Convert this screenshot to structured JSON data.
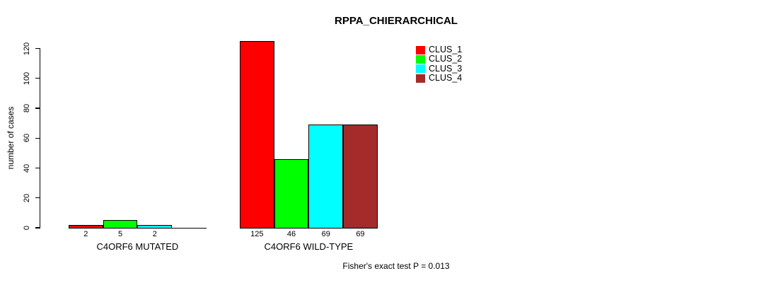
{
  "title": "RPPA_CHIERARCHICAL",
  "footer": "Fisher's exact test P = 0.013",
  "chart_data": {
    "type": "bar",
    "grouped": true,
    "title": "RPPA_CHIERARCHICAL",
    "xlabel": "",
    "ylabel": "number of cases",
    "categories": [
      "C4ORF6 MUTATED",
      "C4ORF6 WILD-TYPE"
    ],
    "series": [
      {
        "name": "CLUS_1",
        "color": "#ff0000",
        "values": [
          2,
          125
        ]
      },
      {
        "name": "CLUS_2",
        "color": "#00ff00",
        "values": [
          5,
          46
        ]
      },
      {
        "name": "CLUS_3",
        "color": "#00ffff",
        "values": [
          2,
          69
        ]
      },
      {
        "name": "CLUS_4",
        "color": "#a52a2a",
        "values": [
          0,
          69
        ]
      }
    ],
    "bar_value_labels": [
      [
        "2",
        "5",
        "2",
        ""
      ],
      [
        "125",
        "46",
        "69",
        "69"
      ]
    ],
    "yticks": [
      0,
      20,
      40,
      60,
      80,
      100,
      120
    ],
    "ylim": [
      0,
      125
    ],
    "grid": false,
    "legend_position": "top-right",
    "legend_entries": [
      "CLUS_1",
      "CLUS_2",
      "CLUS_3",
      "CLUS_4"
    ],
    "annotation": "Fisher's exact test P = 0.013",
    "axis_color": "#000000",
    "background_color": "#ffffff"
  }
}
